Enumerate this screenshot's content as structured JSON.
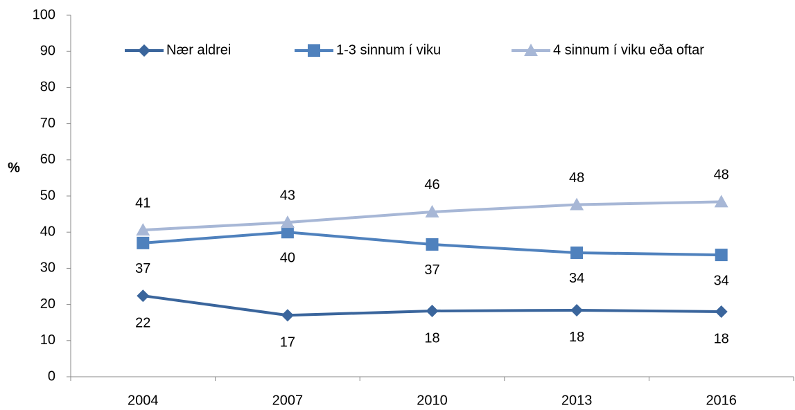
{
  "chart_data": {
    "type": "line",
    "y_label": "%",
    "categories": [
      "2004",
      "2007",
      "2010",
      "2013",
      "2016"
    ],
    "series": [
      {
        "name": "Nær aldrei",
        "color": "#3a659c",
        "marker": "diamond",
        "values": [
          22.4,
          17.0,
          18.2,
          18.4,
          18.0
        ],
        "value_labels": [
          "22",
          "17",
          "18",
          "18",
          "18"
        ]
      },
      {
        "name": "1-3 sinnum í viku",
        "color": "#4f81bd",
        "marker": "square",
        "values": [
          37.0,
          40.0,
          36.6,
          34.3,
          33.7
        ],
        "value_labels": [
          "37",
          "40",
          "37",
          "34",
          "34"
        ]
      },
      {
        "name": "4 sinnum í viku eða oftar",
        "color": "#a7b7d6",
        "marker": "triangle",
        "values": [
          40.6,
          42.7,
          45.6,
          47.6,
          48.4
        ],
        "value_labels": [
          "41",
          "43",
          "46",
          "48",
          "48"
        ]
      }
    ],
    "ylim": [
      0,
      100
    ],
    "yticks": [
      0,
      10,
      20,
      30,
      40,
      50,
      60,
      70,
      80,
      90,
      100
    ],
    "grid": false,
    "legend": "top"
  }
}
